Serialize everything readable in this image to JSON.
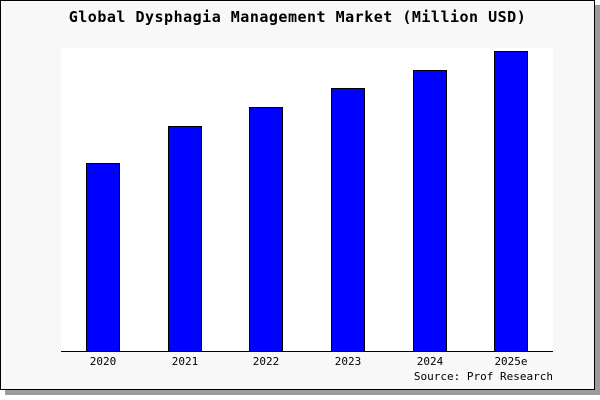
{
  "title": "Global Dysphagia Management Market (Million USD)",
  "source_note": "Source: Prof Research",
  "colors": {
    "bar_fill": "#0000ff",
    "bar_border": "#000000",
    "card_bg": "#f8f8f8",
    "plot_bg": "#ffffff",
    "axis": "#000000",
    "shadow": "#9c9c9c",
    "text": "#000000"
  },
  "chart_data": {
    "type": "bar",
    "title": "Global Dysphagia Management Market (Million USD)",
    "categories": [
      "2020",
      "2021",
      "2022",
      "2023",
      "2024",
      "2025e"
    ],
    "values": [
      62.7,
      75.0,
      81.3,
      87.7,
      93.7,
      100.0
    ],
    "values_note": "No y-axis scale is shown in the chart; values are relative bar heights normalized so 2025e = 100",
    "xlabel": "",
    "ylabel": "",
    "ylim": [
      0,
      101
    ],
    "grid": false,
    "legend_position": "none",
    "annotations": [
      "Source: Prof Research"
    ]
  }
}
